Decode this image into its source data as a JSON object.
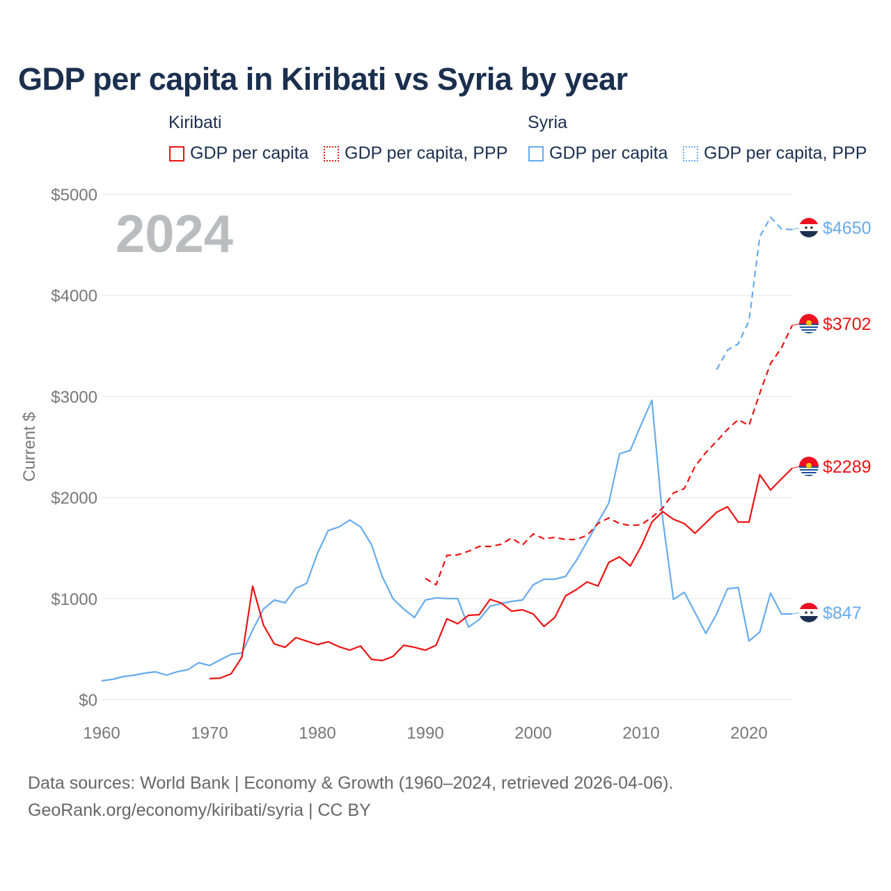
{
  "title": "GDP per capita in Kiribati vs Syria by year",
  "legend": {
    "groups": [
      {
        "country": "Kiribati",
        "items": [
          "GDP per capita",
          "GDP per capita, PPP"
        ],
        "color": "#ee1111"
      },
      {
        "country": "Syria",
        "items": [
          "GDP per capita",
          "GDP per capita, PPP"
        ],
        "color": "#66aaee"
      }
    ]
  },
  "footer": {
    "line1": "Data sources: World Bank | Economy & Growth (1960–2024, retrieved 2026-04-06).",
    "line2": "GeoRank.org/economy/kiribati/syria | CC BY"
  },
  "chart_data": {
    "type": "line",
    "title": "GDP per capita in Kiribati vs Syria by year",
    "xlabel": "",
    "ylabel": "Current $",
    "year_watermark": "2024",
    "xlim": [
      1960,
      2024
    ],
    "ylim": [
      0,
      5000
    ],
    "x_ticks": [
      "1960",
      "1970",
      "1980",
      "1990",
      "2000",
      "2010",
      "2020"
    ],
    "y_ticks": [
      "$0",
      "$1000",
      "$2000",
      "$3000",
      "$4000",
      "$5000"
    ],
    "grid": true,
    "legend_position": "top",
    "series": [
      {
        "name": "Syria GDP per capita",
        "color": "#66aaee",
        "dash": "solid",
        "start": 1960,
        "end_label": "$847",
        "values": [
          186,
          200,
          227,
          241,
          262,
          275,
          241,
          275,
          296,
          365,
          337,
          393,
          448,
          461,
          689,
          895,
          985,
          957,
          1102,
          1150,
          1446,
          1673,
          1708,
          1777,
          1708,
          1536,
          1219,
          999,
          895,
          813,
          985,
          1006,
          999,
          999,
          716,
          792,
          923,
          950,
          971,
          985,
          1136,
          1191,
          1191,
          1219,
          1377,
          1563,
          1756,
          1942,
          2431,
          2466,
          2720,
          2961,
          1790,
          992,
          1061,
          861,
          654,
          847,
          1095,
          1109,
          579,
          668,
          1054,
          847,
          847
        ]
      },
      {
        "name": "Kiribati GDP per capita",
        "color": "#ee1111",
        "dash": "solid",
        "start": 1970,
        "end_label": "$2289",
        "values": [
          207,
          213,
          255,
          420,
          1123,
          737,
          551,
          517,
          613,
          579,
          544,
          572,
          523,
          489,
          530,
          399,
          386,
          427,
          537,
          517,
          489,
          537,
          799,
          751,
          833,
          840,
          992,
          957,
          875,
          888,
          847,
          723,
          813,
          1026,
          1088,
          1164,
          1123,
          1357,
          1412,
          1322,
          1515,
          1756,
          1860,
          1784,
          1742,
          1646,
          1749,
          1853,
          1908,
          1756,
          1756,
          2224,
          2073,
          2183,
          2289
        ]
      },
      {
        "name": "Kiribati GDP per capita, PPP",
        "color": "#ee1111",
        "dash": "dashed",
        "start": 1990,
        "end_label": "$3702",
        "values": [
          1198,
          1136,
          1426,
          1432,
          1467,
          1515,
          1515,
          1536,
          1598,
          1529,
          1639,
          1591,
          1605,
          1584,
          1584,
          1625,
          1742,
          1797,
          1742,
          1722,
          1729,
          1804,
          1894,
          2045,
          2087,
          2307,
          2445,
          2555,
          2672,
          2769,
          2713,
          3030,
          3326,
          3478,
          3702
        ]
      },
      {
        "name": "Syria GDP per capita, PPP",
        "color": "#66aaee",
        "dash": "dashed",
        "start": 2017,
        "end_label": "$4650",
        "values": [
          3264,
          3457,
          3519,
          3747,
          4580,
          4773,
          4656,
          4650
        ]
      }
    ]
  }
}
